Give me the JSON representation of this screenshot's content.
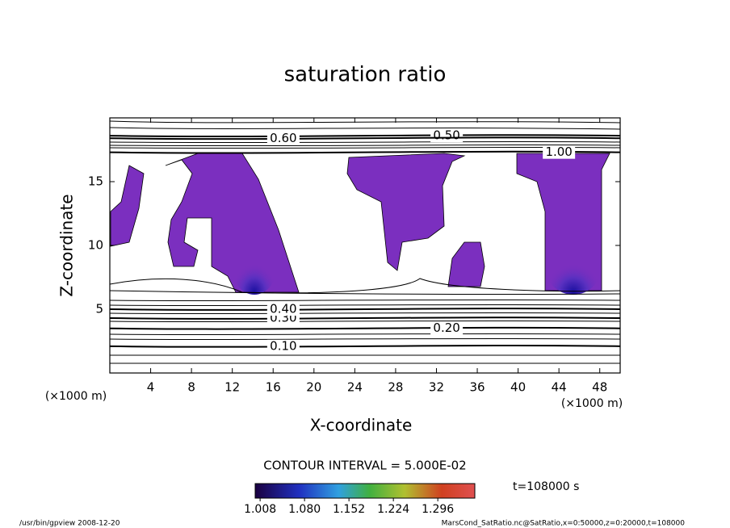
{
  "chart_data": {
    "type": "contour",
    "title": "saturation ratio",
    "xlabel": "X-coordinate",
    "ylabel": "Z-coordinate",
    "x_unit": "(×1000 m)",
    "y_unit": "(×1000 m)",
    "xlim": [
      0,
      50
    ],
    "xticks": [
      4,
      8,
      12,
      16,
      20,
      24,
      28,
      32,
      36,
      40,
      44,
      48
    ],
    "ylim": [
      0,
      20
    ],
    "yticks": [
      5,
      10,
      15
    ],
    "contour_levels": [
      0.1,
      0.2,
      0.3,
      0.4,
      0.5,
      0.6,
      1.0
    ],
    "value_labels": [
      "0.10",
      "0.20",
      "0.30",
      "0.40",
      "0.50",
      "0.60",
      "1.00"
    ],
    "contour_interval": "CONTOUR INTERVAL = 5.000E-02",
    "colorbar": {
      "clim": [
        1.0,
        1.356
      ],
      "ticks": [
        {
          "value": 1.008,
          "label": "1.008"
        },
        {
          "value": 1.08,
          "label": "1.080"
        },
        {
          "value": 1.152,
          "label": "1.152"
        },
        {
          "value": 1.224,
          "label": "1.224"
        },
        {
          "value": 1.296,
          "label": "1.296"
        }
      ]
    },
    "time_label": "t=108000 s",
    "footer_left": "/usr/bin/gpview  2008-12-20",
    "footer_right": "MarsCond_SatRatio.nc@SatRatio,x=0:50000,z=0:20000,t=108000"
  }
}
